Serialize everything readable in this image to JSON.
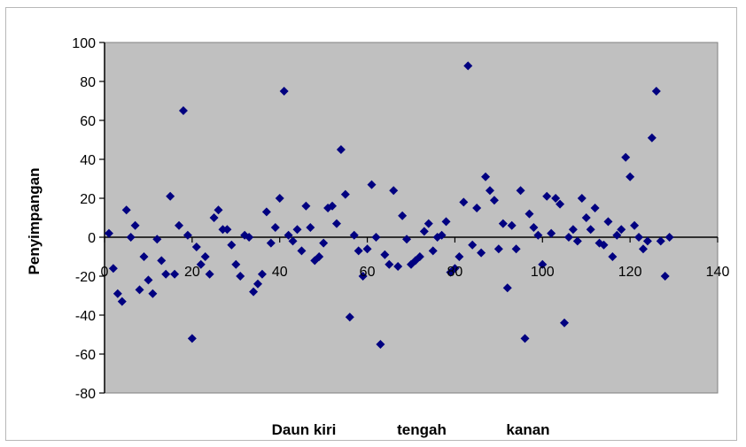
{
  "chart_data": {
    "type": "scatter",
    "title": "",
    "ylabel": "Penyimpangan",
    "xlabel_parts": [
      "Daun kiri",
      "tengah",
      "kanan"
    ],
    "xlim": [
      0,
      140
    ],
    "ylim": [
      -80,
      100
    ],
    "x_ticks": [
      0,
      20,
      40,
      60,
      80,
      100,
      120,
      140
    ],
    "y_ticks": [
      -80,
      -60,
      -40,
      -20,
      0,
      20,
      40,
      60,
      80,
      100
    ],
    "x_tick_labels": [
      "0",
      "20",
      "40",
      "60",
      "80",
      "100",
      "120",
      "140"
    ],
    "y_tick_labels": [
      "-80",
      "-60",
      "-40",
      "-20",
      "0",
      "20",
      "40",
      "60",
      "80",
      "100"
    ],
    "grid": false,
    "legend": "none",
    "plot_background": "#c0c0c0",
    "marker_color": "#000080",
    "marker_shape": "diamond",
    "series": [
      {
        "x": [
          1,
          2,
          3,
          4,
          5,
          6,
          7,
          8,
          9,
          10,
          11,
          12,
          13,
          14,
          15,
          16,
          17,
          18,
          19,
          20,
          21,
          22,
          23,
          24,
          25,
          26,
          27,
          28,
          29,
          30,
          31,
          32,
          33,
          34,
          35,
          36,
          37,
          38,
          39,
          40,
          41,
          42,
          43,
          44,
          45,
          46,
          47,
          48,
          49,
          50,
          51,
          52,
          53,
          54,
          55,
          56,
          57,
          58,
          59,
          60,
          61,
          62,
          63,
          64,
          65,
          66,
          67,
          68,
          69,
          70,
          71,
          72,
          73,
          74,
          75,
          76,
          77,
          78,
          79,
          80,
          81,
          82,
          83,
          84,
          85,
          86,
          87,
          88,
          89,
          90,
          91,
          92,
          93,
          94,
          95,
          96,
          97,
          98,
          99,
          100,
          101,
          102,
          103,
          104,
          105,
          106,
          107,
          108,
          109,
          110,
          111,
          112,
          113,
          114,
          115,
          116,
          117,
          118,
          119,
          120,
          121,
          122,
          123,
          124,
          125,
          126,
          127,
          128,
          129
        ],
        "y": [
          2,
          -16,
          -29,
          -33,
          14,
          0,
          6,
          -27,
          -10,
          -22,
          -29,
          -1,
          -12,
          -19,
          21,
          -19,
          6,
          65,
          1,
          -52,
          -5,
          -14,
          -10,
          -19,
          10,
          14,
          4,
          4,
          -4,
          -14,
          -20,
          1,
          0,
          -28,
          -24,
          -19,
          13,
          -3,
          5,
          20,
          75,
          1,
          -2,
          4,
          -7,
          16,
          5,
          -12,
          -10,
          -3,
          15,
          16,
          7,
          45,
          22,
          -41,
          1,
          -7,
          -20,
          -6,
          27,
          0,
          -55,
          -9,
          -14,
          24,
          -15,
          11,
          -1,
          -14,
          -12,
          -10,
          3,
          7,
          -7,
          0,
          1,
          8,
          -18,
          -16,
          -10,
          18,
          88,
          -4,
          15,
          -8,
          31,
          24,
          19,
          -6,
          7,
          -26,
          6,
          -6,
          24,
          -52,
          12,
          5,
          1,
          -14,
          21,
          2,
          20,
          17,
          -44,
          0,
          4,
          -2,
          20,
          10,
          4,
          15,
          -3,
          -4,
          8,
          -10,
          1,
          4,
          41,
          31,
          6,
          0,
          -6,
          -2,
          51,
          75,
          -2,
          -20,
          0
        ]
      }
    ]
  }
}
